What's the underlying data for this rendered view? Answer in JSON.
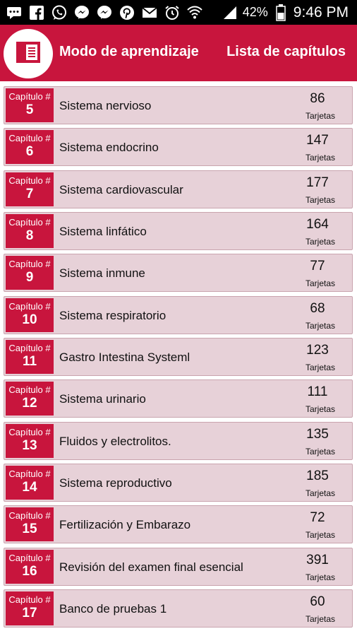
{
  "status_bar": {
    "battery": "42%",
    "time": "9:46 PM",
    "icons": [
      "message-icon",
      "facebook-icon",
      "whatsapp-icon",
      "messenger-icon",
      "messenger-icon",
      "pinterest-icon",
      "mail-icon",
      "alarm-icon",
      "wifi-icon",
      "signal-icon",
      "battery-icon"
    ]
  },
  "header": {
    "title": "Modo de aprendizaje",
    "subtitle": "Lista de capítulos",
    "logo_icon": "book-icon",
    "accent": "#c8153d"
  },
  "chapters": [
    {
      "label": "Capítulo #",
      "number": "5",
      "title": "Sistema nervioso",
      "count": "86",
      "unit": "Tarjetas"
    },
    {
      "label": "Capítulo #",
      "number": "6",
      "title": "Sistema endocrino",
      "count": "147",
      "unit": "Tarjetas"
    },
    {
      "label": "Capítulo #",
      "number": "7",
      "title": "Sistema cardiovascular",
      "count": "177",
      "unit": "Tarjetas"
    },
    {
      "label": "Capítulo #",
      "number": "8",
      "title": "Sistema linfático",
      "count": "164",
      "unit": "Tarjetas"
    },
    {
      "label": "Capítulo #",
      "number": "9",
      "title": "Sistema inmune",
      "count": "77",
      "unit": "Tarjetas"
    },
    {
      "label": "Capítulo #",
      "number": "10",
      "title": "Sistema respiratorio",
      "count": "68",
      "unit": "Tarjetas"
    },
    {
      "label": "Capítulo #",
      "number": "11",
      "title": "Gastro Intestina Systeml",
      "count": "123",
      "unit": "Tarjetas"
    },
    {
      "label": "Capítulo #",
      "number": "12",
      "title": "Sistema urinario",
      "count": "111",
      "unit": "Tarjetas"
    },
    {
      "label": "Capítulo #",
      "number": "13",
      "title": "Fluidos y electrolitos.",
      "count": "135",
      "unit": "Tarjetas"
    },
    {
      "label": "Capítulo #",
      "number": "14",
      "title": "Sistema reproductivo",
      "count": "185",
      "unit": "Tarjetas"
    },
    {
      "label": "Capítulo #",
      "number": "15",
      "title": "Fertilización y Embarazo",
      "count": "72",
      "unit": "Tarjetas"
    },
    {
      "label": "Capítulo #",
      "number": "16",
      "title": "Revisión del examen final esencial",
      "count": "391",
      "unit": "Tarjetas"
    },
    {
      "label": "Capítulo #",
      "number": "17",
      "title": "Banco de pruebas 1",
      "count": "60",
      "unit": "Tarjetas"
    }
  ]
}
